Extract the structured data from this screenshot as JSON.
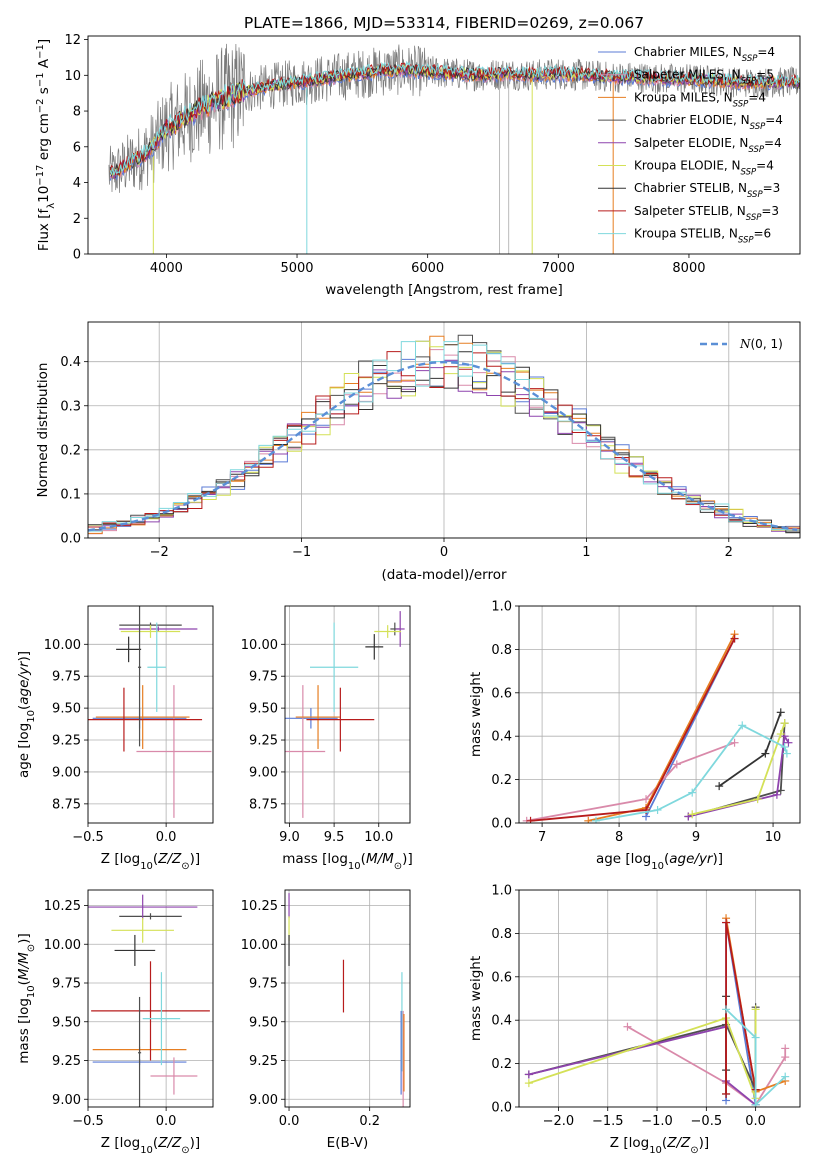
{
  "series_style": [
    {
      "name": "Chabrier MILES, N_SSP=4",
      "color": "#5b7bd6"
    },
    {
      "name": "Salpeter MILES, N_SSP=5",
      "color": "#d98aaa"
    },
    {
      "name": "Kroupa MILES, N_SSP=4",
      "color": "#e67e22"
    },
    {
      "name": "Chabrier ELODIE, N_SSP=4",
      "color": "#4f4f4f"
    },
    {
      "name": "Salpeter ELODIE, N_SSP=4",
      "color": "#8e44ad"
    },
    {
      "name": "Kroupa ELODIE, N_SSP=4",
      "color": "#d4e157"
    },
    {
      "name": "Chabrier STELIB, N_SSP=3",
      "color": "#333333"
    },
    {
      "name": "Salpeter STELIB, N_SSP=3",
      "color": "#b71c1c"
    },
    {
      "name": "Kroupa STELIB, N_SSP=6",
      "color": "#7fd8dd"
    }
  ],
  "chart_data": [
    {
      "id": "spectrum",
      "type": "line",
      "title": "PLATE=1866, MJD=53314, FIBERID=0269, z=0.067",
      "xlabel": "wavelength [Angstrom, rest frame]",
      "ylabel": "Flux [f_λ 10^-17 erg cm^-2 s^-1 A^-1]",
      "xlim": [
        3400,
        8850
      ],
      "ylim": [
        0,
        12.2
      ],
      "xticks": [
        4000,
        5000,
        6000,
        7000,
        8000
      ],
      "yticks": [
        0,
        2,
        4,
        6,
        8,
        10,
        12
      ],
      "grid": false,
      "legend": "upper right",
      "legend_entries": [
        "Chabrier MILES, N_{SSP}=4",
        "Salpeter MILES, N_{SSP}=5",
        "Kroupa MILES, N_{SSP}=4",
        "Chabrier ELODIE, N_{SSP}=4",
        "Salpeter ELODIE, N_{SSP}=4",
        "Kroupa ELODIE, N_{SSP}=4",
        "Chabrier STELIB, N_{SSP}=3",
        "Salpeter STELIB, N_{SSP}=3",
        "Kroupa STELIB, N_{SSP}=6"
      ],
      "data_trend": {
        "x": [
          3600,
          3700,
          3800,
          3900,
          4000,
          4100,
          4200,
          4400,
          4600,
          4800,
          5000,
          5200,
          5400,
          5600,
          5800,
          6000,
          6200,
          6400,
          6600,
          6800,
          7000,
          7200,
          7400,
          7600,
          7800,
          8000,
          8200,
          8400
        ],
        "y": [
          4.5,
          5.0,
          5.4,
          6.0,
          7.0,
          7.4,
          7.9,
          8.6,
          9.1,
          9.4,
          9.6,
          9.8,
          10.0,
          10.2,
          10.3,
          10.2,
          10.1,
          10.0,
          10.1,
          10.0,
          10.1,
          10.0,
          9.9,
          9.9,
          9.8,
          9.8,
          9.7,
          9.6
        ]
      },
      "data_noise_fraction": 0.12
    },
    {
      "id": "residuals",
      "type": "histogram",
      "xlabel": "(data-model)/error",
      "ylabel": "Normed distribution",
      "xlim": [
        -2.5,
        2.5
      ],
      "ylim": [
        0,
        0.49
      ],
      "xticks": [
        -2,
        -1,
        0,
        1,
        2
      ],
      "yticks": [
        0.0,
        0.1,
        0.2,
        0.3,
        0.4
      ],
      "grid": true,
      "legend": "upper right",
      "legend_label": "N(0,1)",
      "bin_width": 0.1,
      "curve": "gaussian mean 0 sigma 1"
    },
    {
      "id": "age-vs-Z",
      "type": "errorbar",
      "xlabel": "Z [log10(Z/Z_sun)]",
      "ylabel": "age [log10(age/yr)]",
      "xlim": [
        -0.5,
        0.3
      ],
      "ylim": [
        8.6,
        10.3
      ],
      "xticks": [
        -0.5,
        0.0
      ],
      "yticks": [
        8.75,
        9.0,
        9.25,
        9.5,
        9.75,
        10.0
      ],
      "grid": true,
      "points": [
        {
          "s": 0,
          "x": -0.17,
          "y": 9.42,
          "xe": 0.3,
          "ye": 0.08
        },
        {
          "s": 1,
          "x": 0.05,
          "y": 9.16,
          "xe": 0.24,
          "ye": 0.52
        },
        {
          "s": 2,
          "x": -0.15,
          "y": 9.43,
          "xe": 0.3,
          "ye": 0.25
        },
        {
          "s": 3,
          "x": -0.1,
          "y": 10.15,
          "xe": 0.2,
          "ye": 0.02
        },
        {
          "s": 4,
          "x": -0.05,
          "y": 10.12,
          "xe": 0.25,
          "ye": 0.02
        },
        {
          "s": 5,
          "x": -0.1,
          "y": 10.1,
          "xe": 0.19,
          "ye": 0.05
        },
        {
          "s": 6,
          "x": -0.24,
          "y": 9.96,
          "xe": 0.08,
          "ye": 0.1
        },
        {
          "s": 7,
          "x": -0.27,
          "y": 9.41,
          "xe": 0.5,
          "ye": 0.25
        },
        {
          "s": 8,
          "x": -0.06,
          "y": 9.82,
          "xe": 0.06,
          "ye": 0.35
        },
        {
          "s": 3,
          "x": -0.17,
          "y": 9.82,
          "xe": 0.01,
          "ye": 0.62
        }
      ]
    },
    {
      "id": "age-vs-mass",
      "type": "errorbar",
      "xlabel": "mass [log10(M/M_sun)]",
      "ylabel": "",
      "xlim": [
        8.95,
        10.35
      ],
      "ylim": [
        8.6,
        10.3
      ],
      "xticks": [
        9.0,
        9.5,
        10.0
      ],
      "yticks": [
        8.75,
        9.0,
        9.25,
        9.5,
        9.75,
        10.0
      ],
      "grid": true,
      "points": [
        {
          "s": 0,
          "x": 9.24,
          "y": 9.42,
          "xe": 0.3,
          "ye": 0.08
        },
        {
          "s": 1,
          "x": 9.15,
          "y": 9.16,
          "xe": 0.25,
          "ye": 0.52
        },
        {
          "s": 2,
          "x": 9.32,
          "y": 9.43,
          "xe": 0.25,
          "ye": 0.25
        },
        {
          "s": 3,
          "x": 10.18,
          "y": 10.12,
          "xe": 0.05,
          "ye": 0.05
        },
        {
          "s": 4,
          "x": 10.24,
          "y": 10.12,
          "xe": 0.05,
          "ye": 0.14
        },
        {
          "s": 5,
          "x": 10.1,
          "y": 10.1,
          "xe": 0.15,
          "ye": 0.05
        },
        {
          "s": 6,
          "x": 9.95,
          "y": 9.98,
          "xe": 0.1,
          "ye": 0.1
        },
        {
          "s": 7,
          "x": 9.57,
          "y": 9.41,
          "xe": 0.38,
          "ye": 0.25
        },
        {
          "s": 8,
          "x": 9.5,
          "y": 9.82,
          "xe": 0.27,
          "ye": 0.35
        }
      ]
    },
    {
      "id": "weight-vs-age",
      "type": "line",
      "xlabel": "age  [log10(age/yr)]",
      "ylabel": "mass weight",
      "xlim": [
        6.7,
        10.35
      ],
      "ylim": [
        0,
        1.0
      ],
      "xticks": [
        7,
        8,
        9,
        10
      ],
      "yticks": [
        0.0,
        0.2,
        0.4,
        0.6,
        0.8,
        1.0
      ],
      "grid": true,
      "lines": [
        {
          "s": 0,
          "x": [
            8.35,
            9.5
          ],
          "y": [
            0.03,
            0.85
          ]
        },
        {
          "s": 1,
          "x": [
            6.8,
            8.35,
            8.75,
            9.5
          ],
          "y": [
            0.01,
            0.11,
            0.27,
            0.37
          ]
        },
        {
          "s": 2,
          "x": [
            7.6,
            8.35,
            9.5
          ],
          "y": [
            0.01,
            0.07,
            0.87
          ]
        },
        {
          "s": 3,
          "x": [
            8.9,
            10.1,
            10.15
          ],
          "y": [
            0.03,
            0.15,
            0.46
          ]
        },
        {
          "s": 4,
          "x": [
            8.9,
            10.05,
            10.15,
            10.2
          ],
          "y": [
            0.03,
            0.13,
            0.4,
            0.37
          ]
        },
        {
          "s": 5,
          "x": [
            8.95,
            9.8,
            10.1,
            10.15
          ],
          "y": [
            0.04,
            0.11,
            0.41,
            0.46
          ]
        },
        {
          "s": 6,
          "x": [
            9.3,
            9.9,
            10.1
          ],
          "y": [
            0.17,
            0.32,
            0.51
          ]
        },
        {
          "s": 7,
          "x": [
            6.85,
            8.35,
            9.5
          ],
          "y": [
            0.01,
            0.06,
            0.85
          ]
        },
        {
          "s": 8,
          "x": [
            7.7,
            8.5,
            8.95,
            9.6,
            10.15,
            10.18
          ],
          "y": [
            0.01,
            0.06,
            0.14,
            0.45,
            0.35,
            0.32
          ]
        }
      ]
    },
    {
      "id": "mass-vs-Z",
      "type": "errorbar",
      "xlabel": "Z [log10(Z/Z_sun)]",
      "ylabel": "mass [log10(M/M_sun)]",
      "xlim": [
        -0.5,
        0.3
      ],
      "ylim": [
        8.95,
        10.35
      ],
      "xticks": [
        -0.5,
        0.0
      ],
      "yticks": [
        9.0,
        9.25,
        9.5,
        9.75,
        10.0,
        10.25
      ],
      "grid": true,
      "points": [
        {
          "s": 0,
          "x": -0.17,
          "y": 9.24,
          "xe": 0.3,
          "ye": 0.02
        },
        {
          "s": 1,
          "x": 0.05,
          "y": 9.15,
          "xe": 0.15,
          "ye": 0.12
        },
        {
          "s": 2,
          "x": -0.17,
          "y": 9.32,
          "xe": 0.3,
          "ye": 0.02
        },
        {
          "s": 3,
          "x": -0.1,
          "y": 10.18,
          "xe": 0.2,
          "ye": 0.02
        },
        {
          "s": 4,
          "x": -0.15,
          "y": 10.24,
          "xe": 0.35,
          "ye": 0.08
        },
        {
          "s": 5,
          "x": -0.15,
          "y": 10.09,
          "xe": 0.2,
          "ye": 0.08
        },
        {
          "s": 6,
          "x": -0.2,
          "y": 9.96,
          "xe": 0.13,
          "ye": 0.1
        },
        {
          "s": 7,
          "x": -0.1,
          "y": 9.57,
          "xe": 0.38,
          "ye": 0.32
        },
        {
          "s": 8,
          "x": -0.03,
          "y": 9.52,
          "xe": 0.12,
          "ye": 0.3
        },
        {
          "s": 3,
          "x": -0.17,
          "y": 9.3,
          "xe": 0.01,
          "ye": 0.36
        }
      ]
    },
    {
      "id": "mass-vs-ebv",
      "type": "errorbar",
      "xlabel": "E(B-V)",
      "ylabel": "",
      "xlim": [
        -0.01,
        0.3
      ],
      "ylim": [
        8.95,
        10.35
      ],
      "xticks": [
        0.0,
        0.2
      ],
      "yticks": [
        9.0,
        9.25,
        9.5,
        9.75,
        10.0,
        10.25
      ],
      "grid": true,
      "points": [
        {
          "s": 4,
          "x": 0.0,
          "y": 10.25,
          "xe": 0.0,
          "ye": 0.08
        },
        {
          "s": 5,
          "x": 0.0,
          "y": 10.1,
          "xe": 0.0,
          "ye": 0.08
        },
        {
          "s": 6,
          "x": 0.0,
          "y": 9.96,
          "xe": 0.0,
          "ye": 0.1
        },
        {
          "s": 7,
          "x": 0.135,
          "y": 9.73,
          "xe": 0.0,
          "ye": 0.17
        },
        {
          "s": 8,
          "x": 0.28,
          "y": 9.5,
          "xe": 0.0,
          "ye": 0.32
        },
        {
          "s": 1,
          "x": 0.283,
          "y": 9.25,
          "xe": 0.0,
          "ye": 0.32
        },
        {
          "s": 0,
          "x": 0.278,
          "y": 9.3,
          "xe": 0.0,
          "ye": 0.27
        },
        {
          "s": 2,
          "x": 0.285,
          "y": 9.3,
          "xe": 0.0,
          "ye": 0.25
        }
      ]
    },
    {
      "id": "weight-vs-Z",
      "type": "line",
      "xlabel": "Z [log10(Z/Z_sun)]",
      "ylabel": "mass weight",
      "xlim": [
        -2.4,
        0.45
      ],
      "ylim": [
        0,
        1.0
      ],
      "xticks": [
        -2.0,
        -1.5,
        -1.0,
        -0.5,
        0.0
      ],
      "yticks": [
        0.0,
        0.2,
        0.4,
        0.6,
        0.8,
        1.0
      ],
      "grid": true,
      "lines": [
        {
          "s": 0,
          "x": [
            -0.3,
            -0.3,
            0.0
          ],
          "y": [
            0.03,
            0.85,
            0.01
          ]
        },
        {
          "s": 1,
          "x": [
            -1.3,
            -0.3,
            0.0,
            0.3,
            0.3
          ],
          "y": [
            0.37,
            0.11,
            0.01,
            0.23,
            0.27
          ]
        },
        {
          "s": 2,
          "x": [
            -0.3,
            0.0,
            0.3
          ],
          "y": [
            0.87,
            0.07,
            0.12
          ]
        },
        {
          "s": 3,
          "x": [
            -2.3,
            -0.3,
            0.0,
            0.0
          ],
          "y": [
            0.15,
            0.38,
            0.08,
            0.46
          ]
        },
        {
          "s": 4,
          "x": [
            -2.3,
            -0.3,
            -0.3,
            0.0
          ],
          "y": [
            0.15,
            0.37,
            0.12,
            0.01
          ]
        },
        {
          "s": 5,
          "x": [
            -2.3,
            -0.3,
            0.0,
            0.0
          ],
          "y": [
            0.11,
            0.41,
            0.04,
            0.45
          ]
        },
        {
          "s": 6,
          "x": [
            -0.3,
            -0.3,
            -0.3
          ],
          "y": [
            0.06,
            0.51,
            0.17
          ]
        },
        {
          "s": 7,
          "x": [
            -0.3,
            -0.3,
            0.0
          ],
          "y": [
            0.06,
            0.85,
            0.08
          ]
        },
        {
          "s": 8,
          "x": [
            -0.3,
            0.0,
            0.0,
            0.3
          ],
          "y": [
            0.45,
            0.32,
            0.01,
            0.14
          ]
        }
      ]
    }
  ]
}
